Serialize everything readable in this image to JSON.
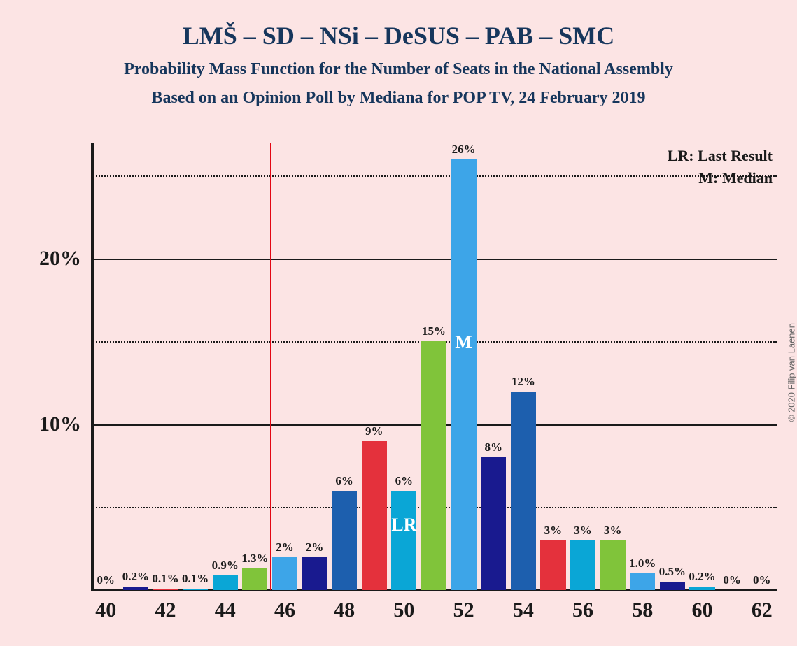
{
  "title": "LMŠ – SD – NSi – DeSUS – PAB – SMC",
  "subtitle1": "Probability Mass Function for the Number of Seats in the National Assembly",
  "subtitle2": "Based on an Opinion Poll by Mediana for POP TV, 24 February 2019",
  "copyright": "© 2020 Filip van Laenen",
  "legend": {
    "lr": "LR: Last Result",
    "m": "M: Median"
  },
  "chart": {
    "type": "bar",
    "background_color": "#fce4e4",
    "text_color": "#16365c",
    "axis_color": "#1a1a1a",
    "grid_color": "#1a1a1a",
    "title_fontsize": 36,
    "subtitle_fontsize": 24,
    "legend_fontsize": 22,
    "axis_tick_fontsize": 30,
    "bar_label_fontsize": 17,
    "in_bar_label_fontsize": 26,
    "bar_width": 0.85,
    "x_min": 39.5,
    "x_max": 62.5,
    "y_min": 0,
    "y_max": 27,
    "y_ticks_major": [
      10,
      20
    ],
    "y_ticks_minor": [
      5,
      15,
      25
    ],
    "x_ticks": [
      40,
      42,
      44,
      46,
      48,
      50,
      52,
      54,
      56,
      58,
      60,
      62
    ],
    "lr_x": 45.5,
    "lr_color": "#e30613",
    "color_cycle": [
      "#3da5e8",
      "#191a8f",
      "#e4313c",
      "#0aa6d6",
      "#80c43a",
      "#3da5e8",
      "#191a8f",
      "#e4313c",
      "#0aa6d6",
      "#80c43a",
      "#3da5e8",
      "#191a8f",
      "#1d5fae",
      "#e4313c",
      "#0aa6d6",
      "#80c43a",
      "#3da5e8",
      "#191a8f",
      "#1d5fae",
      "#0aa6d6",
      "#80c43a",
      "#3da5e8",
      "#191a8f"
    ],
    "bars": [
      {
        "x": 40,
        "value": 0,
        "label": "0%",
        "color": "#3da5e8"
      },
      {
        "x": 41,
        "value": 0.2,
        "label": "0.2%",
        "color": "#191a8f"
      },
      {
        "x": 42,
        "value": 0.1,
        "label": "0.1%",
        "color": "#e4313c"
      },
      {
        "x": 43,
        "value": 0.1,
        "label": "0.1%",
        "color": "#0aa6d6"
      },
      {
        "x": 44,
        "value": 0.9,
        "label": "0.9%",
        "color": "#80c43a"
      },
      {
        "x": 45,
        "value": 1.3,
        "label": "1.3%",
        "color": "#3da5e8"
      },
      {
        "x": 46,
        "value": 2,
        "label": "2%",
        "color": "#191a8f"
      },
      {
        "x": 47,
        "value": 2,
        "label": "2%",
        "color": "#e4313c"
      },
      {
        "x": 48,
        "value": 6,
        "label": "6%",
        "color": "#0aa6d6"
      },
      {
        "x": 49,
        "value": 9,
        "label": "9%",
        "color": "#80c43a"
      },
      {
        "x": 50,
        "value": 6,
        "label": "6%",
        "in_label": "LR",
        "color": "#3da5e8"
      },
      {
        "x": 51,
        "value": 15,
        "label": "15%",
        "color": "#191a8f"
      },
      {
        "x": 52,
        "value": 26,
        "label": "26%",
        "in_label": "M",
        "color": "#1d5fae"
      },
      {
        "x": 53,
        "value": 8,
        "label": "8%",
        "color": "#e4313c"
      },
      {
        "x": 54,
        "value": 12,
        "label": "12%",
        "color": "#0aa6d6"
      },
      {
        "x": 55,
        "value": 3,
        "label": "3%",
        "color": "#80c43a"
      },
      {
        "x": 56,
        "value": 3,
        "label": "3%",
        "color": "#3da5e8"
      },
      {
        "x": 57,
        "value": 3,
        "label": "3%",
        "color": "#191a8f"
      },
      {
        "x": 58,
        "value": 1.0,
        "label": "1.0%",
        "color": "#1d5fae"
      },
      {
        "x": 59,
        "value": 0.5,
        "label": "0.5%",
        "color": "#0aa6d6"
      },
      {
        "x": 60,
        "value": 0.2,
        "label": "0.2%",
        "color": "#80c43a"
      },
      {
        "x": 61,
        "value": 0,
        "label": "0%",
        "color": "#3da5e8"
      },
      {
        "x": 62,
        "value": 0,
        "label": "0%",
        "color": "#191a8f"
      }
    ],
    "bar_colors_actual": {
      "40": "#3da5e8",
      "41": "#191a8f",
      "42": "#e4313c",
      "43": "#0aa6d6",
      "44": "#0aa6d6",
      "45": "#80c43a",
      "46": "#3da5e8",
      "47": "#191a8f",
      "48": "#1d5fae",
      "49": "#e4313c",
      "50": "#0aa6d6",
      "51": "#80c43a",
      "52": "#3da5e8",
      "53": "#191a8f",
      "54": "#1d5fae",
      "55": "#e4313c",
      "56": "#0aa6d6",
      "57": "#80c43a",
      "58": "#3da5e8",
      "59": "#191a8f",
      "60": "#0aa6d6",
      "61": "#80c43a",
      "62": "#3da5e8"
    }
  }
}
